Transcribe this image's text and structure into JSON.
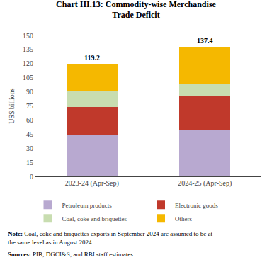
{
  "chart_data": {
    "type": "bar",
    "stacked": true,
    "title": "Chart III.13: Commodity-wise Merchandise\nTrade Deficit",
    "ylabel": "US$ billions",
    "categories": [
      "2023-24 (Apr-Sep)",
      "2024-25 (Apr-Sep)"
    ],
    "series": [
      {
        "name": "Petroleum products",
        "color": "#b8a9d0",
        "values": [
          44.0,
          50.0
        ]
      },
      {
        "name": "Electronic goods",
        "color": "#c0392b",
        "values": [
          30.0,
          36.0
        ]
      },
      {
        "name": "Coal, coke and briquettes",
        "color": "#c8ddb0",
        "values": [
          17.0,
          12.0
        ]
      },
      {
        "name": "Others",
        "color": "#f5b800",
        "values": [
          28.2,
          39.4
        ]
      }
    ],
    "totals": [
      119.2,
      137.4
    ],
    "ylim": [
      0,
      150
    ],
    "yticks": [
      0,
      15,
      30,
      45,
      60,
      75,
      90,
      105,
      120,
      135,
      150
    ],
    "grid": false,
    "legend": "bottom",
    "annotations": [
      "Note: Coal, coke and briquettes exports in September 2024 are assumed to be at\nthe same level as in August 2024.",
      "Sources: PIB; DGCI&S; and RBI staff estimates."
    ]
  }
}
